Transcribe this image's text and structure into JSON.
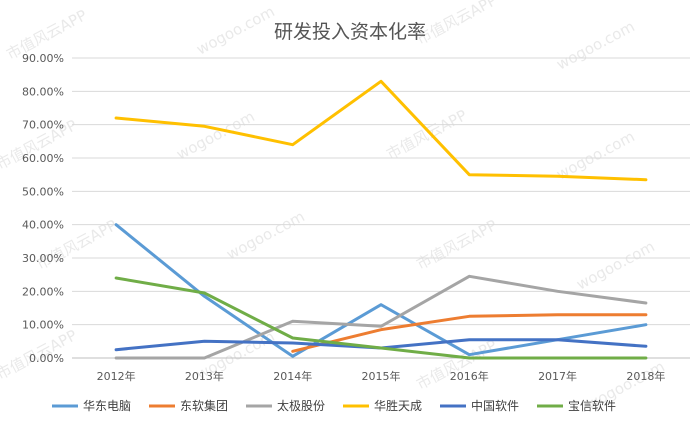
{
  "chart_data": {
    "type": "line",
    "title": "研发投入资本化率",
    "categories": [
      "2012年",
      "2013年",
      "2014年",
      "2015年",
      "2016年",
      "2017年",
      "2018年"
    ],
    "ylim": [
      0,
      90
    ],
    "yticks": [
      "0.00%",
      "10.00%",
      "20.00%",
      "30.00%",
      "40.00%",
      "50.00%",
      "60.00%",
      "70.00%",
      "80.00%",
      "90.00%"
    ],
    "grid": true,
    "legend_position": "bottom",
    "series": [
      {
        "name": "华东电脑",
        "color": "#5b9bd5",
        "values": [
          40.0,
          18.5,
          0.5,
          16.0,
          1.0,
          5.5,
          10.0
        ]
      },
      {
        "name": "东软集团",
        "color": "#ed7d31",
        "values": [
          null,
          null,
          2.0,
          8.5,
          12.5,
          13.0,
          13.0
        ]
      },
      {
        "name": "太极股份",
        "color": "#a5a5a5",
        "values": [
          0.0,
          0.0,
          11.0,
          9.5,
          24.5,
          20.0,
          16.5
        ]
      },
      {
        "name": "华胜天成",
        "color": "#ffc000",
        "values": [
          72.0,
          69.5,
          64.0,
          83.0,
          55.0,
          54.5,
          53.5
        ]
      },
      {
        "name": "中国软件",
        "color": "#4472c4",
        "values": [
          2.5,
          5.0,
          4.5,
          3.0,
          5.5,
          5.5,
          3.5
        ]
      },
      {
        "name": "宝信软件",
        "color": "#70ad47",
        "values": [
          24.0,
          19.5,
          6.0,
          3.0,
          0.0,
          0.0,
          0.0
        ]
      }
    ]
  },
  "watermark": "市值风云APP",
  "watermark2": "wogoo.com"
}
